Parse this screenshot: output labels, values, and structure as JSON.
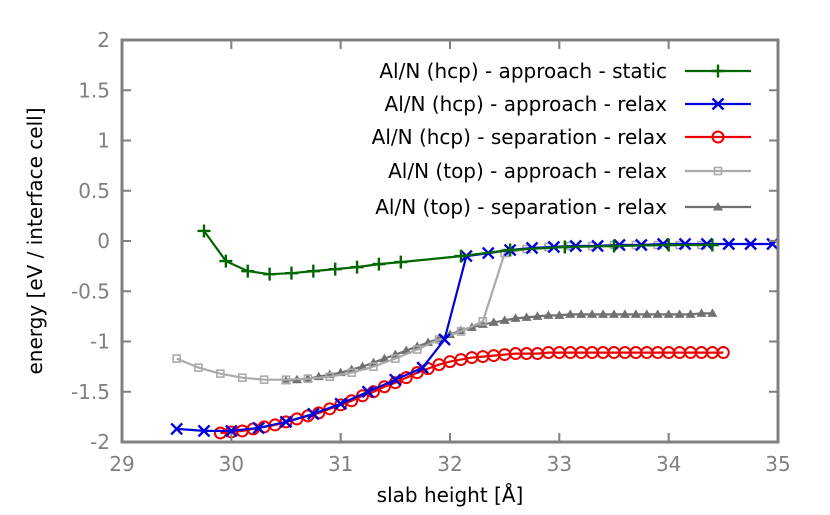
{
  "chart_data": {
    "type": "line",
    "xlabel": "slab height [Å]",
    "ylabel": "energy [eV / interface cell]",
    "xlim": [
      29,
      35
    ],
    "ylim": [
      -2,
      2
    ],
    "xticks": [
      29,
      30,
      31,
      32,
      33,
      34,
      35
    ],
    "yticks": [
      -2,
      -1.5,
      -1,
      -0.5,
      0,
      0.5,
      1,
      1.5,
      2
    ],
    "xtick_labels": [
      "29",
      "30",
      "31",
      "32",
      "33",
      "34",
      "35"
    ],
    "ytick_labels": [
      "-2",
      "-1.5",
      "-1",
      "-0.5",
      "0",
      "0.5",
      "1",
      "1.5",
      "2"
    ],
    "grid": false,
    "legend_position": "top-right",
    "series": [
      {
        "name": "Al/N (top) - separation - relax",
        "color": "#707070",
        "marker": "triangle",
        "x": [
          30.5,
          30.6,
          30.7,
          30.8,
          30.9,
          31.0,
          31.1,
          31.2,
          31.3,
          31.4,
          31.5,
          31.6,
          31.7,
          31.8,
          31.9,
          32.0,
          32.1,
          32.2,
          32.3,
          32.4,
          32.5,
          32.6,
          32.7,
          32.8,
          32.9,
          33.0,
          33.1,
          33.2,
          33.3,
          33.4,
          33.5,
          33.6,
          33.7,
          33.8,
          33.9,
          34.0,
          34.1,
          34.2,
          34.3,
          34.4
        ],
        "y": [
          -1.39,
          -1.38,
          -1.37,
          -1.35,
          -1.33,
          -1.31,
          -1.28,
          -1.25,
          -1.21,
          -1.17,
          -1.13,
          -1.09,
          -1.05,
          -1.01,
          -0.97,
          -0.93,
          -0.89,
          -0.86,
          -0.83,
          -0.81,
          -0.79,
          -0.77,
          -0.76,
          -0.75,
          -0.74,
          -0.74,
          -0.73,
          -0.73,
          -0.73,
          -0.73,
          -0.73,
          -0.73,
          -0.73,
          -0.73,
          -0.73,
          -0.73,
          -0.73,
          -0.73,
          -0.72,
          -0.72
        ]
      },
      {
        "name": "Al/N (top) - approach - relax",
        "color": "#aaaaaa",
        "marker": "square",
        "x": [
          29.5,
          29.7,
          29.9,
          30.1,
          30.3,
          30.5,
          30.7,
          30.9,
          31.1,
          31.3,
          31.5,
          31.7,
          31.9,
          32.1,
          32.3,
          32.5,
          32.7,
          32.9,
          33.1,
          33.3,
          33.5,
          33.7,
          33.9,
          34.1,
          34.3
        ],
        "y": [
          -1.17,
          -1.26,
          -1.32,
          -1.36,
          -1.38,
          -1.38,
          -1.37,
          -1.35,
          -1.31,
          -1.25,
          -1.17,
          -1.08,
          -0.98,
          -0.9,
          -0.8,
          -0.12,
          -0.08,
          -0.06,
          -0.05,
          -0.05,
          -0.04,
          -0.04,
          -0.04,
          -0.04,
          -0.04
        ]
      },
      {
        "name": "Al/N (hcp) - separation - relax",
        "color": "#ee0000",
        "marker": "circle",
        "x": [
          29.9,
          30.0,
          30.1,
          30.2,
          30.3,
          30.4,
          30.5,
          30.6,
          30.7,
          30.8,
          30.9,
          31.0,
          31.1,
          31.2,
          31.3,
          31.4,
          31.5,
          31.6,
          31.7,
          31.8,
          31.9,
          32.0,
          32.1,
          32.2,
          32.3,
          32.4,
          32.5,
          32.6,
          32.7,
          32.8,
          32.9,
          33.0,
          33.1,
          33.2,
          33.3,
          33.4,
          33.5,
          33.6,
          33.7,
          33.8,
          33.9,
          34.0,
          34.1,
          34.2,
          34.3,
          34.4,
          34.5
        ],
        "y": [
          -1.91,
          -1.9,
          -1.89,
          -1.87,
          -1.85,
          -1.83,
          -1.8,
          -1.77,
          -1.74,
          -1.71,
          -1.67,
          -1.63,
          -1.59,
          -1.54,
          -1.5,
          -1.45,
          -1.41,
          -1.36,
          -1.31,
          -1.27,
          -1.23,
          -1.2,
          -1.18,
          -1.16,
          -1.15,
          -1.14,
          -1.13,
          -1.12,
          -1.12,
          -1.12,
          -1.11,
          -1.11,
          -1.11,
          -1.11,
          -1.11,
          -1.11,
          -1.11,
          -1.11,
          -1.11,
          -1.11,
          -1.11,
          -1.11,
          -1.11,
          -1.11,
          -1.11,
          -1.11,
          -1.11
        ]
      },
      {
        "name": "Al/N (hcp) - approach - relax",
        "color": "#0000dd",
        "marker": "x",
        "x": [
          29.5,
          29.75,
          30.0,
          30.25,
          30.5,
          30.75,
          31.0,
          31.25,
          31.5,
          31.75,
          31.95,
          32.15,
          32.35,
          32.55,
          32.75,
          32.95,
          33.15,
          33.35,
          33.55,
          33.75,
          33.95,
          34.15,
          34.35,
          34.55,
          34.75,
          34.95
        ],
        "y": [
          -1.87,
          -1.89,
          -1.89,
          -1.86,
          -1.8,
          -1.72,
          -1.62,
          -1.5,
          -1.38,
          -1.26,
          -0.98,
          -0.15,
          -0.12,
          -0.09,
          -0.07,
          -0.06,
          -0.05,
          -0.05,
          -0.04,
          -0.04,
          -0.03,
          -0.03,
          -0.03,
          -0.03,
          -0.03,
          -0.03
        ]
      },
      {
        "name": "Al/N (hcp) - approach - static",
        "color": "#006600",
        "marker": "plus",
        "x": [
          29.75,
          29.95,
          30.15,
          30.35,
          30.55,
          30.75,
          30.95,
          31.15,
          31.35,
          31.55,
          32.1,
          32.55,
          33.05,
          33.5,
          34.0,
          34.4
        ],
        "y": [
          0.1,
          -0.2,
          -0.3,
          -0.33,
          -0.32,
          -0.3,
          -0.28,
          -0.26,
          -0.23,
          -0.21,
          -0.15,
          -0.09,
          -0.06,
          -0.05,
          -0.04,
          -0.04
        ]
      }
    ]
  }
}
